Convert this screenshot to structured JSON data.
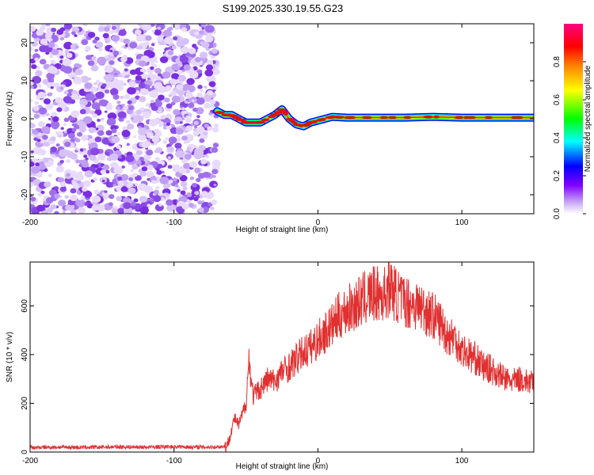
{
  "title": "S199.2025.330.19.55.G23",
  "chart_data": [
    {
      "type": "heatmap",
      "xlabel": "Height of straight line (km)",
      "ylabel": "Frequency (Hz)",
      "xlim": [
        -200,
        150
      ],
      "ylim": [
        -25,
        25
      ],
      "xticks": [
        -200,
        -100,
        0,
        100
      ],
      "xtick_labels": [
        "-200",
        "-100",
        "0",
        "100"
      ],
      "yticks": [
        -20,
        -10,
        0,
        10,
        20
      ],
      "ytick_labels": [
        "-20",
        "-10",
        "0",
        "10",
        "20"
      ],
      "noise_region_x": [
        -200,
        -70
      ],
      "signal_region_x": [
        -72,
        150
      ],
      "signal_frequency_track": [
        {
          "x": -70,
          "y": 2
        },
        {
          "x": -65,
          "y": 1
        },
        {
          "x": -60,
          "y": 1
        },
        {
          "x": -55,
          "y": 0
        },
        {
          "x": -50,
          "y": -1
        },
        {
          "x": -45,
          "y": -1
        },
        {
          "x": -40,
          "y": -1
        },
        {
          "x": -35,
          "y": 0
        },
        {
          "x": -30,
          "y": 1
        },
        {
          "x": -25,
          "y": 2.5
        },
        {
          "x": -20,
          "y": 0
        },
        {
          "x": -15,
          "y": -1.5
        },
        {
          "x": -10,
          "y": -2
        },
        {
          "x": -5,
          "y": -1
        },
        {
          "x": 0,
          "y": -0.5
        },
        {
          "x": 5,
          "y": 0
        },
        {
          "x": 10,
          "y": 0.5
        },
        {
          "x": 20,
          "y": 0.3
        },
        {
          "x": 40,
          "y": 0.3
        },
        {
          "x": 60,
          "y": 0.3
        },
        {
          "x": 80,
          "y": 0.5
        },
        {
          "x": 100,
          "y": 0.3
        },
        {
          "x": 120,
          "y": 0.3
        },
        {
          "x": 150,
          "y": 0.3
        }
      ],
      "colorbar": {
        "label": "Normalized spectral amplitude",
        "range": [
          0,
          1
        ],
        "ticks": [
          0.0,
          0.2,
          0.4,
          0.6,
          0.8
        ],
        "tick_labels": [
          "0.0",
          "0.2",
          "0.4",
          "0.6",
          "0.8"
        ],
        "colors": [
          "#ffffff",
          "#c8a8f5",
          "#8000ff",
          "#0000ff",
          "#00ffff",
          "#00ff00",
          "#ffff00",
          "#ff8000",
          "#ff0000",
          "#ff0080"
        ]
      }
    },
    {
      "type": "line",
      "xlabel": "Height of straight line (km)",
      "ylabel": "SNR (10 * v/v)",
      "xlim": [
        -200,
        150
      ],
      "ylim": [
        0,
        780
      ],
      "xticks": [
        -200,
        -100,
        0,
        100
      ],
      "xtick_labels": [
        "-200",
        "-100",
        "0",
        "100"
      ],
      "yticks": [
        0,
        200,
        400,
        600
      ],
      "ytick_labels": [
        "0",
        "200",
        "400",
        "600"
      ],
      "series": [
        {
          "name": "SNR",
          "color": "#e03030",
          "x": [
            -200,
            -180,
            -160,
            -140,
            -120,
            -100,
            -80,
            -70,
            -63,
            -58,
            -55,
            -50,
            -48,
            -45,
            -40,
            -35,
            -30,
            -25,
            -20,
            -15,
            -10,
            -5,
            0,
            5,
            10,
            15,
            20,
            25,
            30,
            35,
            40,
            45,
            50,
            55,
            60,
            65,
            70,
            75,
            80,
            85,
            90,
            95,
            100,
            105,
            110,
            115,
            120,
            125,
            130,
            135,
            140,
            145,
            150
          ],
          "values": [
            18,
            20,
            19,
            21,
            20,
            22,
            20,
            21,
            25,
            140,
            110,
            200,
            380,
            230,
            260,
            300,
            290,
            330,
            350,
            380,
            410,
            430,
            460,
            490,
            520,
            560,
            580,
            600,
            620,
            640,
            650,
            640,
            680,
            640,
            620,
            610,
            600,
            580,
            560,
            530,
            480,
            470,
            420,
            400,
            380,
            350,
            340,
            320,
            300,
            290,
            300,
            290,
            280
          ]
        }
      ]
    }
  ]
}
